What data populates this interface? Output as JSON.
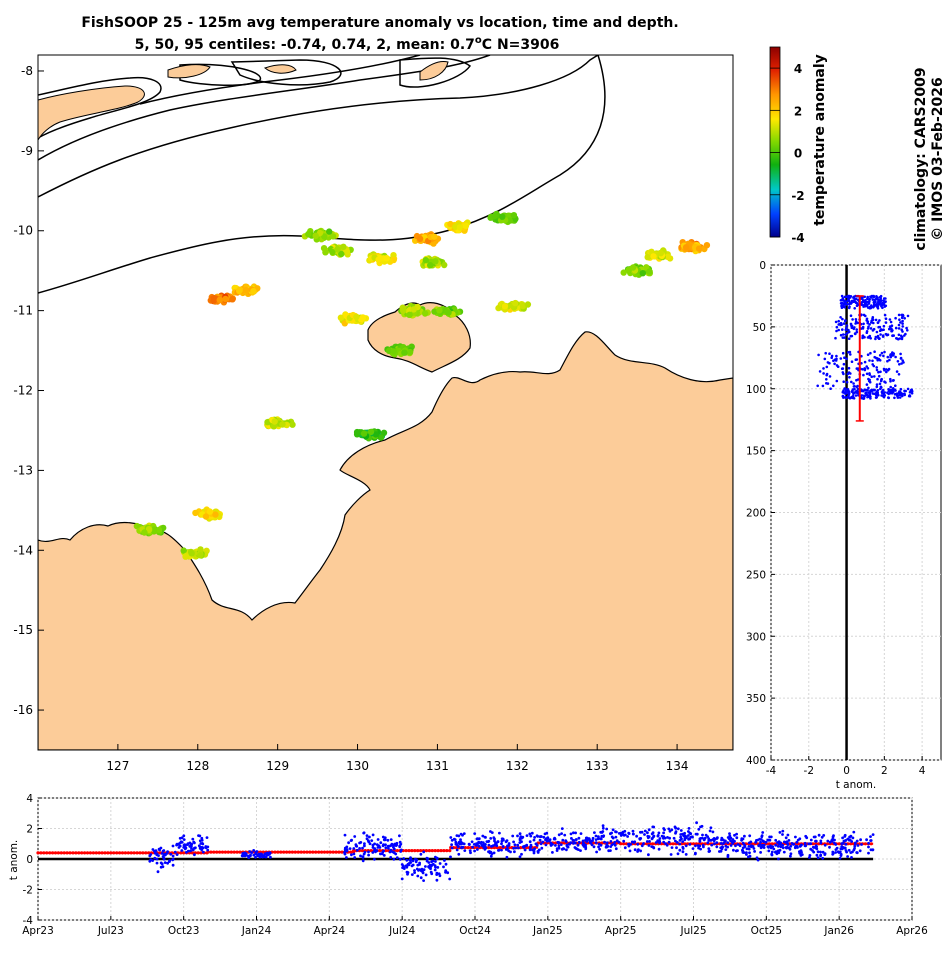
{
  "chart_data": [
    {
      "type": "scatter",
      "name": "map",
      "title_line1": "FishSOOP 25 - 125m avg temperature anomaly vs location, time and depth.",
      "title_line2": "5, 50, 95 centiles: -0.74, 0.74, 2, mean: 0.7",
      "title_unit": "C",
      "title_deg": "o",
      "title_n": "N=3906",
      "xticks": [
        "127",
        "128",
        "129",
        "130",
        "131",
        "132",
        "133",
        "134"
      ],
      "yticks": [
        "-8",
        "-9",
        "-10",
        "-11",
        "-12",
        "-13",
        "-14",
        "-15",
        "-16"
      ],
      "xlim": [
        126.0,
        134.7
      ],
      "ylim": [
        -16.5,
        -7.8
      ],
      "clusters": [
        {
          "lon": 129.75,
          "lat": -10.25,
          "anom": 1.0
        },
        {
          "lon": 129.55,
          "lat": -10.05,
          "anom": 0.6
        },
        {
          "lon": 130.3,
          "lat": -10.35,
          "anom": 1.5
        },
        {
          "lon": 130.9,
          "lat": -10.1,
          "anom": 2.5
        },
        {
          "lon": 131.3,
          "lat": -9.95,
          "anom": 1.8
        },
        {
          "lon": 131.85,
          "lat": -9.85,
          "anom": 0.2
        },
        {
          "lon": 130.9,
          "lat": -10.4,
          "anom": 0.8
        },
        {
          "lon": 128.3,
          "lat": -10.85,
          "anom": 3.0
        },
        {
          "lon": 128.6,
          "lat": -10.75,
          "anom": 2.2
        },
        {
          "lon": 130.7,
          "lat": -11.0,
          "anom": 0.8
        },
        {
          "lon": 131.1,
          "lat": -11.0,
          "anom": 0.5
        },
        {
          "lon": 131.95,
          "lat": -10.95,
          "anom": 1.2
        },
        {
          "lon": 129.95,
          "lat": -11.1,
          "anom": 1.6
        },
        {
          "lon": 133.75,
          "lat": -10.3,
          "anom": 1.3
        },
        {
          "lon": 134.2,
          "lat": -10.2,
          "anom": 2.5
        },
        {
          "lon": 133.5,
          "lat": -10.5,
          "anom": 0.4
        },
        {
          "lon": 129.0,
          "lat": -12.4,
          "anom": 1.2
        },
        {
          "lon": 128.15,
          "lat": -13.55,
          "anom": 1.8
        },
        {
          "lon": 127.95,
          "lat": -14.05,
          "anom": 1.0
        },
        {
          "lon": 127.4,
          "lat": -13.75,
          "anom": 0.7
        },
        {
          "lon": 130.55,
          "lat": -11.5,
          "anom": 0.3
        },
        {
          "lon": 130.15,
          "lat": -12.55,
          "anom": -0.3
        }
      ]
    },
    {
      "type": "colorbar",
      "name": "temperature-colorbar",
      "label": "temperature anomaly",
      "ticks": [
        "4",
        "2",
        "0",
        "-2",
        "-4"
      ],
      "range": [
        -4,
        5
      ],
      "colors": [
        "#00008c",
        "#0040ff",
        "#00c8c8",
        "#10b010",
        "#80d800",
        "#ffe800",
        "#ff9600",
        "#e02000",
        "#8c0000"
      ]
    },
    {
      "type": "scatter",
      "name": "depth-profile",
      "xlabel": "t anom.",
      "xticks": [
        "-4",
        "-2",
        "0",
        "2",
        "4"
      ],
      "yticks": [
        "0",
        "50",
        "100",
        "150",
        "200",
        "250",
        "300",
        "350",
        "400"
      ],
      "xlim": [
        -4,
        5
      ],
      "ylim": [
        400,
        0
      ],
      "depth_bands": [
        {
          "dmin": 25,
          "dmax": 35,
          "xmin": -0.3,
          "xmax": 2.1
        },
        {
          "dmin": 40,
          "dmax": 60,
          "xmin": -0.6,
          "xmax": 3.3
        },
        {
          "dmin": 70,
          "dmax": 100,
          "xmin": -1.6,
          "xmax": 3.1
        },
        {
          "dmin": 100,
          "dmax": 108,
          "xmin": -0.2,
          "xmax": 3.5
        }
      ],
      "mean_line": {
        "x": 0.7,
        "dmin": 25,
        "dmax": 126
      }
    },
    {
      "type": "scatter",
      "name": "time-series",
      "ylabel": "t anom.",
      "yticks": [
        "4",
        "2",
        "0",
        "-2",
        "-4"
      ],
      "xticks": [
        "Apr23",
        "Jul23",
        "Oct23",
        "Jan24",
        "Apr24",
        "Jul24",
        "Oct24",
        "Jan25",
        "Apr25",
        "Jul25",
        "Oct25",
        "Jan26",
        "Apr26"
      ],
      "ylim": [
        -4,
        4
      ],
      "segments": [
        {
          "t0": 4.6,
          "t1": 5.6,
          "mean": 0.1,
          "spread": 1.0
        },
        {
          "t0": 5.6,
          "t1": 7.0,
          "mean": 0.9,
          "spread": 0.8
        },
        {
          "t0": 8.4,
          "t1": 9.6,
          "mean": 0.3,
          "spread": 0.3
        },
        {
          "t0": 12.6,
          "t1": 15.0,
          "mean": 0.8,
          "spread": 1.4
        },
        {
          "t0": 15.0,
          "t1": 17.0,
          "mean": -0.5,
          "spread": 1.3
        },
        {
          "t0": 17.0,
          "t1": 20.6,
          "mean": 1.0,
          "spread": 1.1
        },
        {
          "t0": 20.6,
          "t1": 23.2,
          "mean": 1.1,
          "spread": 1.0
        },
        {
          "t0": 23.2,
          "t1": 28.0,
          "mean": 1.3,
          "spread": 1.3
        },
        {
          "t0": 28.0,
          "t1": 34.4,
          "mean": 0.9,
          "spread": 1.2
        }
      ],
      "mean_steps": [
        {
          "t0": 0.0,
          "t1": 7.0,
          "v": 0.4
        },
        {
          "t0": 7.0,
          "t1": 13.0,
          "v": 0.45
        },
        {
          "t0": 13.0,
          "t1": 17.0,
          "v": 0.55
        },
        {
          "t0": 17.0,
          "t1": 20.6,
          "v": 0.75
        },
        {
          "t0": 20.6,
          "t1": 24.0,
          "v": 1.05
        },
        {
          "t0": 24.0,
          "t1": 34.4,
          "v": 1.0
        }
      ]
    }
  ],
  "side_text": {
    "climatology": "climatology: CARS2009",
    "credit": "© IMOS 03-Feb-2026"
  },
  "colors": {
    "land": "#fccc99",
    "points": "#0000ff",
    "mean": "#ff0000"
  }
}
